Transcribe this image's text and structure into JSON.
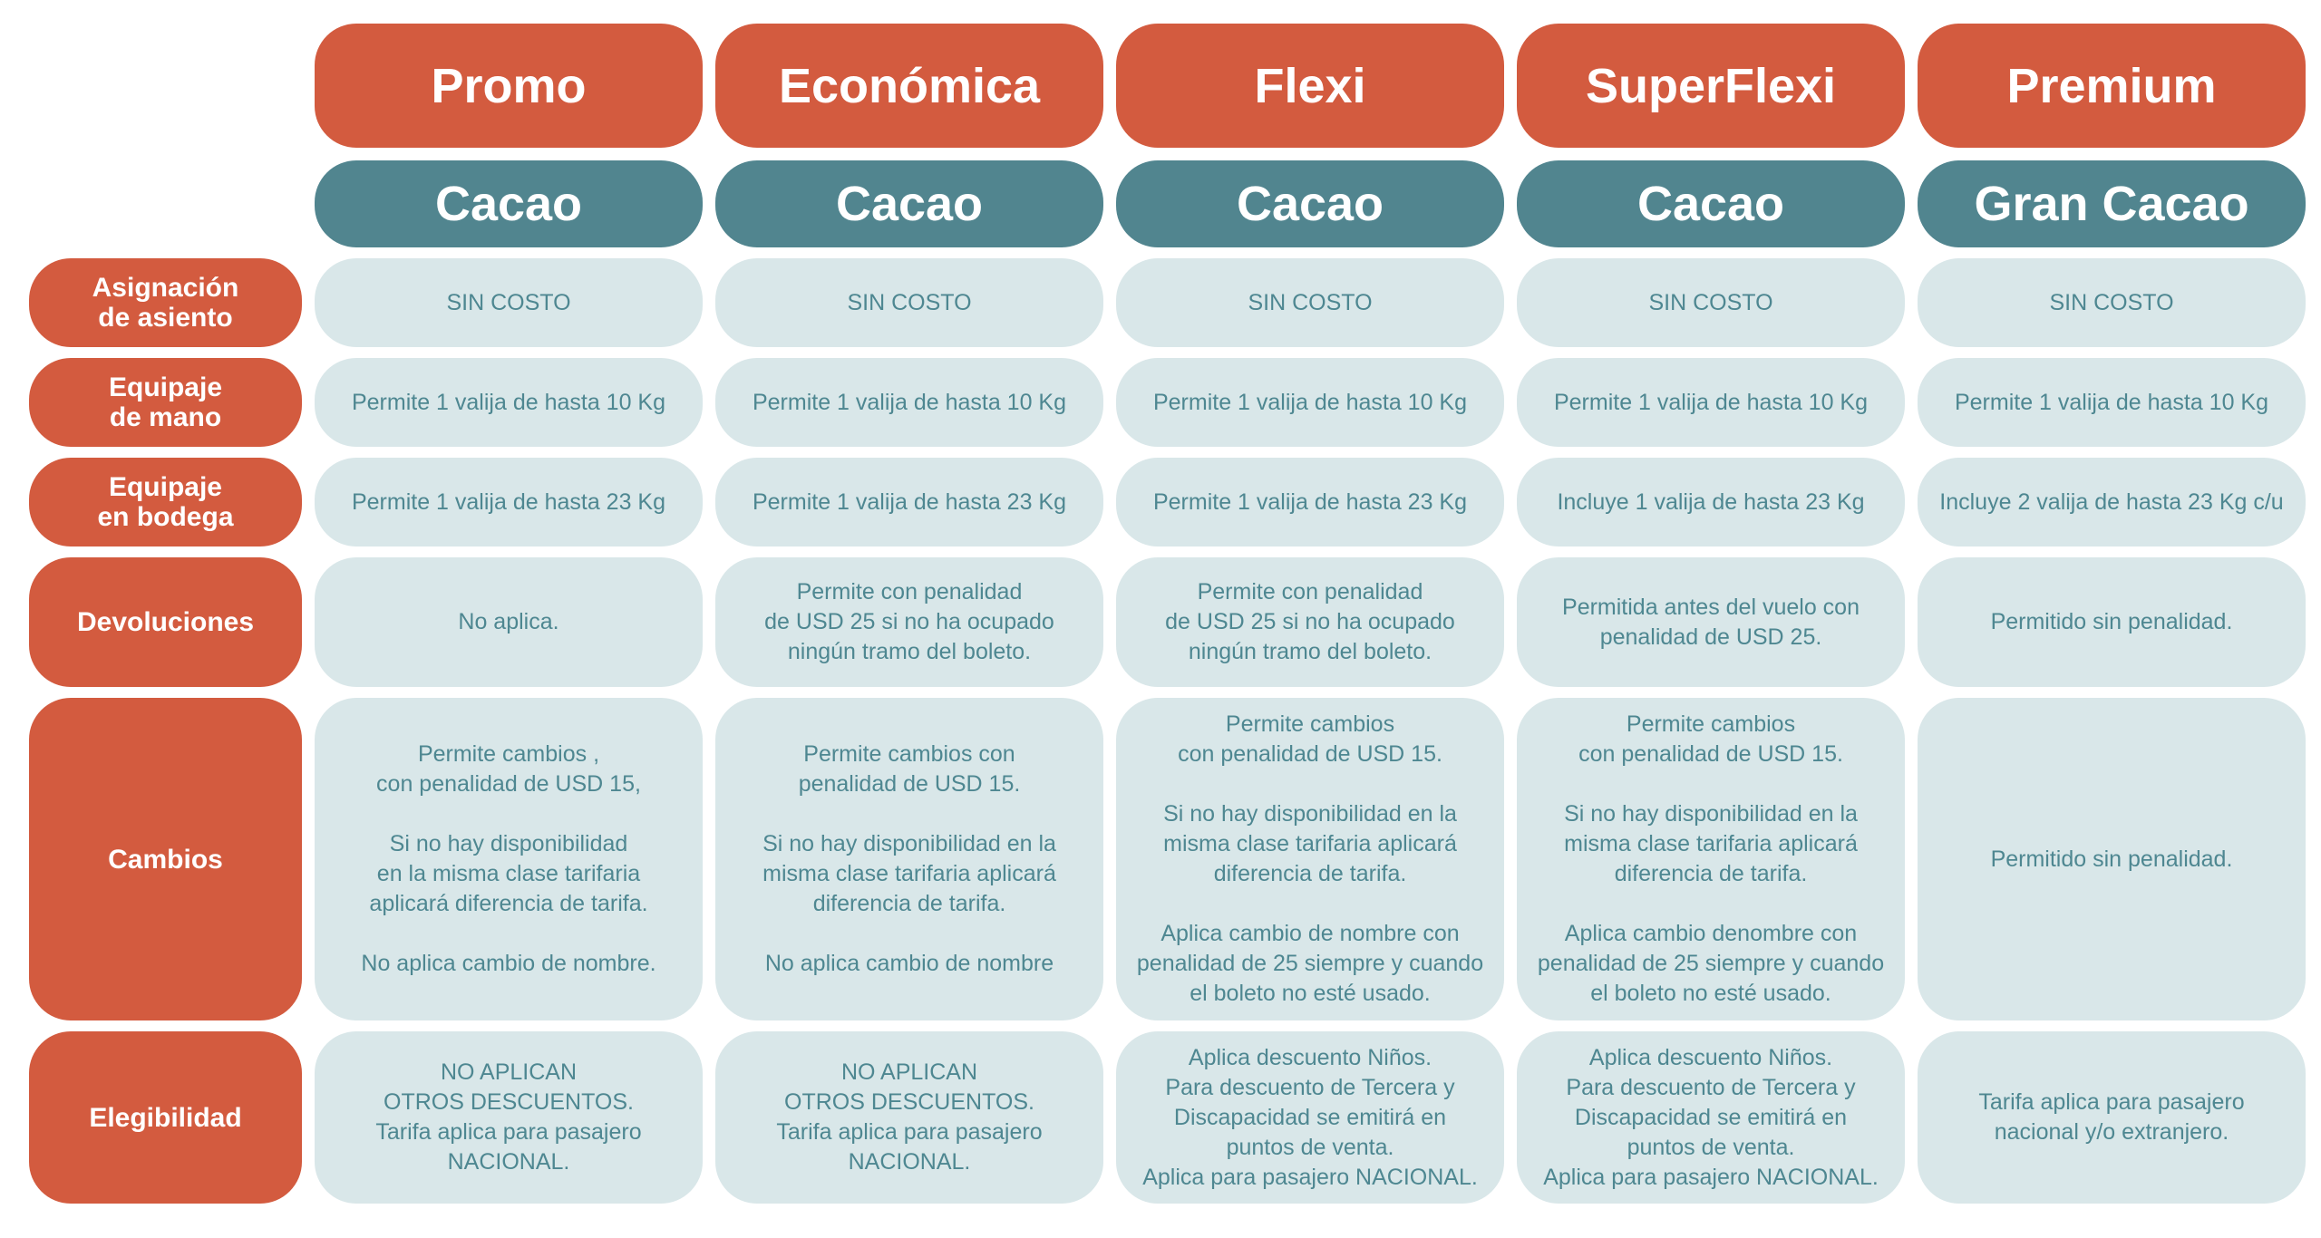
{
  "colors": {
    "orange": "#D35B3F",
    "teal": "#51858F",
    "cell": "#D9E7E9",
    "text": "#4E8791"
  },
  "fares": [
    {
      "name": "Promo",
      "cabin": "Cacao"
    },
    {
      "name": "Económica",
      "cabin": "Cacao"
    },
    {
      "name": "Flexi",
      "cabin": "Cacao"
    },
    {
      "name": "SuperFlexi",
      "cabin": "Cacao"
    },
    {
      "name": "Premium",
      "cabin": "Gran Cacao"
    }
  ],
  "rows": [
    {
      "label": "Asignación\nde asiento",
      "values": [
        "SIN COSTO",
        "SIN COSTO",
        "SIN COSTO",
        "SIN COSTO",
        "SIN COSTO"
      ]
    },
    {
      "label": "Equipaje\nde mano",
      "values": [
        "Permite 1 valija de hasta 10 Kg",
        "Permite 1 valija de hasta 10 Kg",
        "Permite 1 valija de hasta 10 Kg",
        "Permite 1 valija de hasta 10 Kg",
        "Permite 1 valija de hasta 10 Kg"
      ]
    },
    {
      "label": "Equipaje\nen bodega",
      "values": [
        "Permite 1 valija de hasta 23 Kg",
        "Permite 1 valija de hasta 23 Kg",
        "Permite 1 valija de hasta 23 Kg",
        "Incluye 1 valija de hasta 23 Kg",
        "Incluye 2 valija de hasta 23 Kg c/u"
      ]
    },
    {
      "label": "Devoluciones",
      "values": [
        "No aplica.",
        "Permite con penalidad\nde USD 25 si no ha ocupado\nningún tramo del boleto.",
        "Permite con penalidad\nde USD 25 si no ha ocupado\nningún tramo del boleto.",
        "Permitida antes del vuelo con\npenalidad de USD 25.",
        "Permitido sin penalidad."
      ]
    },
    {
      "label": "Cambios",
      "values": [
        "Permite cambios ,\ncon penalidad de USD 15,\n\nSi no hay disponibilidad\nen la misma clase tarifaria\naplicará diferencia de tarifa.\n\nNo aplica cambio de nombre.",
        "Permite cambios con\npenalidad de USD 15.\n\nSi no hay disponibilidad en la\nmisma clase tarifaria aplicará\ndiferencia de tarifa.\n\nNo aplica cambio de nombre",
        "Permite cambios\ncon penalidad de USD 15.\n\nSi no hay disponibilidad en la\nmisma clase tarifaria aplicará\ndiferencia de tarifa.\n\nAplica cambio de nombre con\npenalidad de 25 siempre y cuando\nel boleto no esté usado.",
        "Permite cambios\ncon penalidad de USD 15.\n\nSi no hay disponibilidad en la\nmisma clase tarifaria aplicará\ndiferencia de tarifa.\n\nAplica cambio denombre con\npenalidad de 25 siempre y cuando\nel boleto no esté usado.",
        "Permitido sin penalidad."
      ]
    },
    {
      "label": "Elegibilidad",
      "values": [
        "NO APLICAN\nOTROS DESCUENTOS.\nTarifa aplica para pasajero\nNACIONAL.",
        "NO APLICAN\nOTROS DESCUENTOS.\nTarifa aplica para pasajero\nNACIONAL.",
        "Aplica descuento Niños.\nPara descuento de Tercera y\nDiscapacidad se emitirá en\npuntos de venta.\nAplica  para pasajero NACIONAL.",
        "Aplica descuento Niños.\nPara descuento de Tercera y\nDiscapacidad se emitirá en\npuntos de venta.\nAplica  para pasajero NACIONAL.",
        "Tarifa aplica para pasajero\nnacional y/o extranjero."
      ]
    }
  ]
}
